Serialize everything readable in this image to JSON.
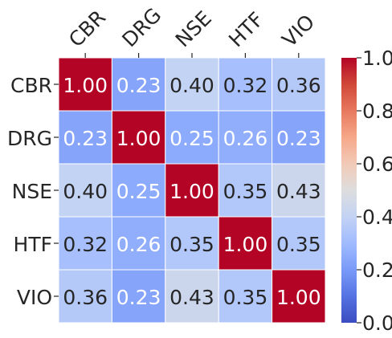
{
  "chart_data": {
    "type": "heatmap",
    "title": "",
    "x_categories": [
      "CBR",
      "DRG",
      "NSE",
      "HTF",
      "VIO"
    ],
    "y_categories": [
      "CBR",
      "DRG",
      "NSE",
      "HTF",
      "VIO"
    ],
    "values": [
      [
        1.0,
        0.23,
        0.4,
        0.32,
        0.36
      ],
      [
        0.23,
        1.0,
        0.25,
        0.26,
        0.23
      ],
      [
        0.4,
        0.25,
        1.0,
        0.35,
        0.43
      ],
      [
        0.32,
        0.26,
        0.35,
        1.0,
        0.35
      ],
      [
        0.36,
        0.23,
        0.43,
        0.35,
        1.0
      ]
    ],
    "cell_labels": [
      [
        "1.00",
        "0.23",
        "0.40",
        "0.32",
        "0.36"
      ],
      [
        "0.23",
        "1.00",
        "0.25",
        "0.26",
        "0.23"
      ],
      [
        "0.40",
        "0.25",
        "1.00",
        "0.35",
        "0.43"
      ],
      [
        "0.32",
        "0.26",
        "0.35",
        "1.00",
        "0.35"
      ],
      [
        "0.36",
        "0.23",
        "0.43",
        "0.35",
        "1.00"
      ]
    ],
    "colormap": "coolwarm",
    "vmin": 0.0,
    "vmax": 1.0,
    "colorbar_ticks": [
      0.0,
      0.2,
      0.4,
      0.6,
      0.8,
      1.0
    ],
    "colorbar_tick_labels": [
      "0.0",
      "0.2",
      "0.4",
      "0.6",
      "0.8",
      "1.0"
    ],
    "colorbar_position": "right",
    "x_label_position": "top",
    "x_label_rotation": "45deg",
    "grid": false
  }
}
